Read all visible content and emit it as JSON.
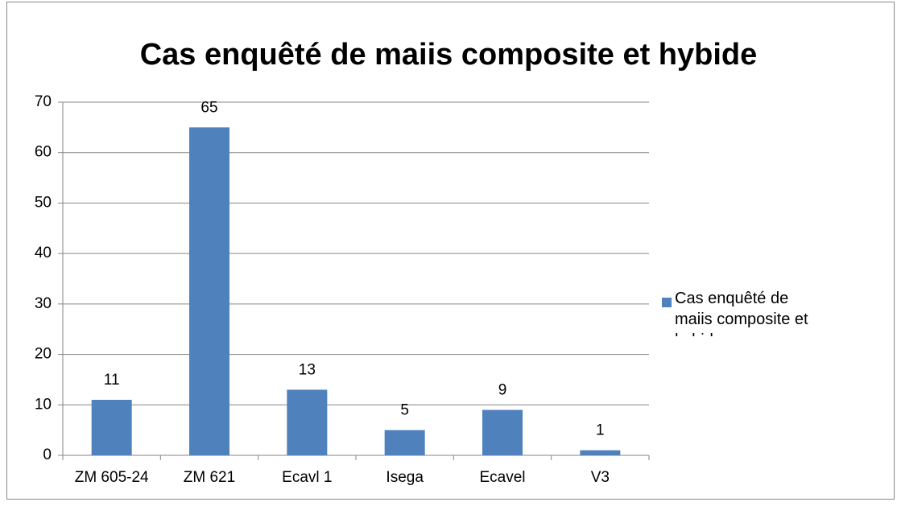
{
  "chart_data": {
    "type": "bar",
    "title": "Cas enquêté de maiis composite et hybide",
    "categories": [
      "ZM 605-24",
      "ZM 621",
      "Ecavl 1",
      "Isega",
      "Ecavel",
      "V3"
    ],
    "series": [
      {
        "name": "Cas enquêté de maiis composite et hybide",
        "color": "#4f81bd",
        "values": [
          11,
          65,
          13,
          5,
          9,
          1
        ]
      }
    ],
    "ylim": [
      0,
      70
    ],
    "yticks": [
      0,
      10,
      20,
      30,
      40,
      50,
      60,
      70
    ],
    "grid": true,
    "legend": "right"
  }
}
